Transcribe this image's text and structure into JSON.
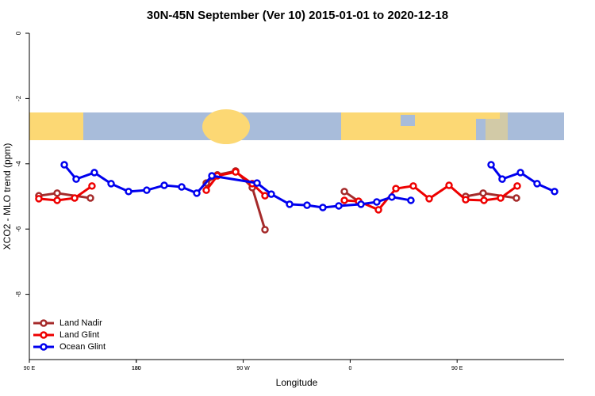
{
  "chart_data": {
    "type": "line",
    "title": "30N-45N September (Ver 10)   2015-01-01 to 2020-12-18",
    "x_label": "Longitude",
    "y_label": "XCO2 - MLO trend (ppm)",
    "xlim": [
      90,
      540
    ],
    "xticks": [
      {
        "value": 90,
        "label": "90 E"
      },
      180,
      {
        "value": 270,
        "label": "90 W"
      },
      {
        "value": 360,
        "label": "0"
      },
      {
        "value": 450,
        "label": "90 E"
      },
      180.0001
    ],
    "ylim": [
      -10,
      0
    ],
    "yticks": [
      0,
      -2,
      -4,
      -6,
      -8
    ],
    "legend": "bottom-left",
    "series": [
      {
        "name": "Land Nadir",
        "color": "#a52a2a",
        "x": [
          98.0,
          113.4,
          141.4,
          null,
          238.9,
          248.2,
          263.6,
          277.6,
          288.3,
          null,
          355.1,
          367.1,
          null,
          457.2,
          471.9,
          499.9
        ],
        "values": [
          -4.98,
          -4.9,
          -5.05,
          null,
          -4.59,
          -4.34,
          -4.22,
          -4.73,
          -6.02,
          null,
          -4.85,
          -5.15,
          null,
          -5.0,
          -4.9,
          -5.05
        ]
      },
      {
        "name": "Land Glint",
        "color": "#ee0000",
        "x": [
          98.0,
          113.4,
          128.1,
          142.7,
          null,
          238.9,
          248.2,
          263.6,
          277.6,
          288.3,
          null,
          355.1,
          367.1,
          383.8,
          398.5,
          413.1,
          426.5,
          443.2,
          457.2,
          472.6,
          486.6,
          500.6
        ],
        "values": [
          -5.07,
          -5.12,
          -5.05,
          -4.68,
          null,
          -4.81,
          -4.37,
          -4.25,
          -4.61,
          -4.98,
          null,
          -5.12,
          -5.15,
          -5.41,
          -4.76,
          -4.68,
          -5.07,
          -4.66,
          -5.1,
          -5.12,
          -5.05,
          -4.68
        ]
      },
      {
        "name": "Ocean Glint",
        "color": "#0000ee",
        "x": [
          119.4,
          129.4,
          144.7,
          158.8,
          173.5,
          188.8,
          203.5,
          218.2,
          230.9,
          243.6,
          281.6,
          293.6,
          309.0,
          323.7,
          337.0,
          350.4,
          369.1,
          382.4,
          395.1,
          411.1,
          null,
          478.6,
          487.9,
          503.3,
          517.3,
          532.0
        ],
        "values": [
          -4.03,
          -4.47,
          -4.27,
          -4.61,
          -4.85,
          -4.81,
          -4.66,
          -4.71,
          -4.9,
          -4.37,
          -4.59,
          -4.93,
          -5.24,
          -5.27,
          -5.34,
          -5.29,
          -5.24,
          -5.17,
          -5.02,
          -5.12,
          null,
          -4.03,
          -4.47,
          -4.27,
          -4.61,
          -4.85
        ]
      }
    ]
  }
}
